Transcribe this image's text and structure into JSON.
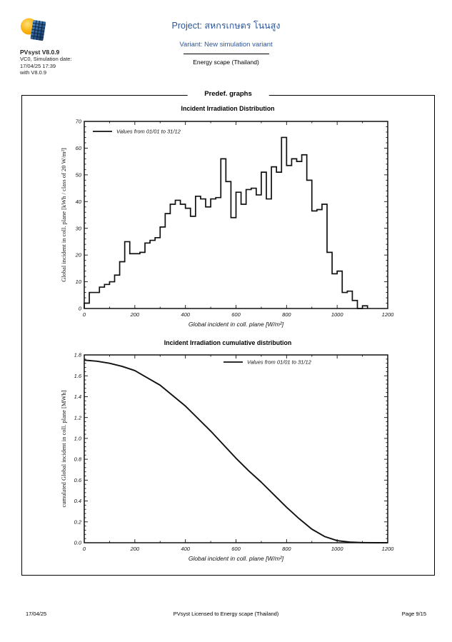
{
  "header": {
    "app_name": "PVsyst V8.0.9",
    "sim_line1": "VC0, Simulation date:",
    "sim_line2": "17/04/25 17:39",
    "sim_line3": "with V8.0.9",
    "project": "Project: สหกรเกษตร โนนสูง",
    "variant": "Variant: New simulation variant",
    "company": "Energy scape (Thailand)",
    "accent_color": "#2E5594",
    "logo_sun_color": "#F9B000",
    "logo_panel_color": "#1F63A8"
  },
  "section": {
    "title": "Predef. graphs"
  },
  "footer": {
    "date": "17/04/25",
    "license": "PVsyst Licensed to  Energy scape (Thailand)",
    "page": "Page 9/15"
  },
  "chart_data": [
    {
      "type": "bar",
      "subtype": "step-histogram",
      "title": "Incident Irradiation Distribution",
      "legend": "Values from 01/01 to 31/12",
      "legend_position": "top-left",
      "xlabel": "Global incident in coll. plane [W/m²]",
      "ylabel": "Global incident in coll. plane [kWh / class of 20 W/m²]",
      "xlim": [
        0,
        1200
      ],
      "ylim": [
        0,
        70
      ],
      "x_major": 200,
      "x_minor": 100,
      "y_major": 10,
      "y_minor": 2,
      "y_decimals": 0,
      "grid": false,
      "bin_start": 0,
      "bin_width": 20,
      "values": [
        2,
        6,
        6,
        8,
        9,
        10,
        12.5,
        17.5,
        25,
        20.5,
        20.5,
        21,
        24.5,
        25.5,
        26.5,
        30.5,
        35.5,
        39,
        40.5,
        39,
        37.5,
        34.5,
        42,
        41,
        38,
        41,
        41.5,
        56,
        47.5,
        34,
        43.5,
        39,
        44.5,
        45,
        42.5,
        51,
        41,
        53,
        51,
        64,
        53.5,
        56,
        55,
        57.5,
        48,
        36.5,
        37,
        39,
        21,
        13,
        14,
        6,
        6.5,
        3,
        0,
        1
      ],
      "ink_color": "#111111"
    },
    {
      "type": "line",
      "title": "Incident Irradiation cumulative distribution",
      "legend": "Values from 01/01 to 31/12",
      "legend_position": "top-center",
      "xlabel": "Global incident in coll. plane [W/m²]",
      "ylabel": "cumulated Global incident in coll. plane [MWh]",
      "xlim": [
        0,
        1200
      ],
      "ylim": [
        0,
        1.8
      ],
      "x_major": 200,
      "x_minor": 100,
      "y_major": 0.2,
      "y_minor": 0.04,
      "y_decimals": 1,
      "grid": false,
      "points": [
        [
          0,
          1.75
        ],
        [
          50,
          1.74
        ],
        [
          100,
          1.72
        ],
        [
          150,
          1.69
        ],
        [
          200,
          1.65
        ],
        [
          250,
          1.58
        ],
        [
          300,
          1.51
        ],
        [
          350,
          1.41
        ],
        [
          400,
          1.31
        ],
        [
          450,
          1.19
        ],
        [
          500,
          1.07
        ],
        [
          550,
          0.94
        ],
        [
          600,
          0.81
        ],
        [
          650,
          0.69
        ],
        [
          700,
          0.58
        ],
        [
          750,
          0.46
        ],
        [
          800,
          0.34
        ],
        [
          850,
          0.23
        ],
        [
          900,
          0.13
        ],
        [
          950,
          0.06
        ],
        [
          1000,
          0.02
        ],
        [
          1050,
          0.006
        ],
        [
          1100,
          0.001
        ],
        [
          1150,
          0
        ],
        [
          1200,
          0
        ]
      ],
      "ink_color": "#111111"
    }
  ]
}
